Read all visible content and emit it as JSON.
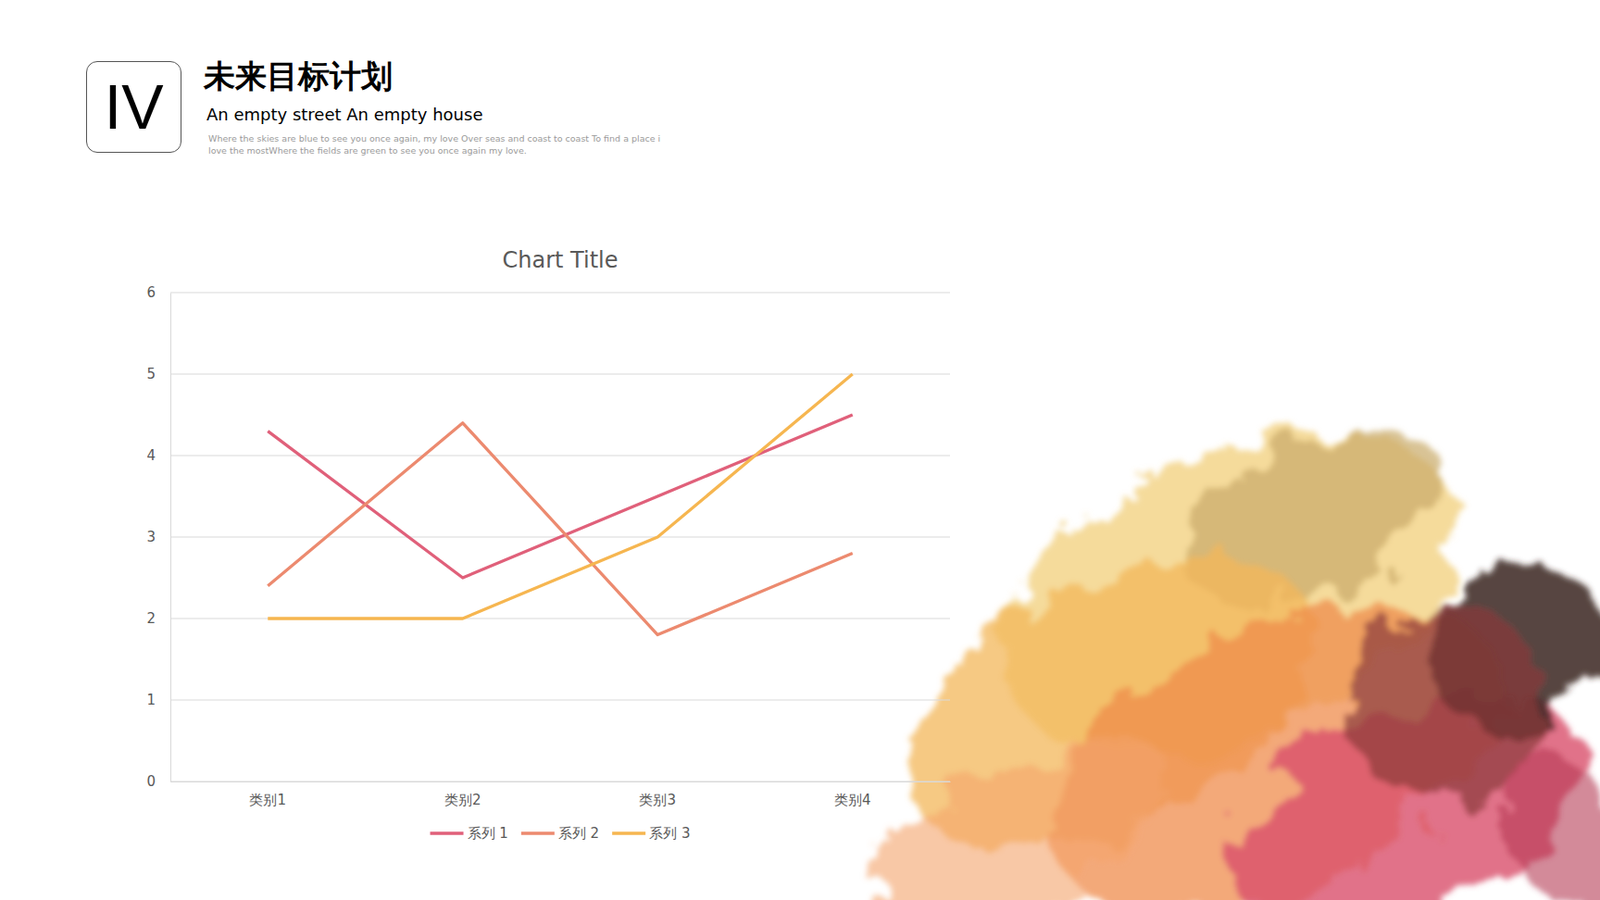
{
  "header": {
    "numeral": "IV",
    "title": "未来目标计划",
    "subtitle": "An empty street An empty house",
    "text": "Where the skies are blue to see you once again, my love Over seas and coast to coast To find a place i love the mostWhere the fields are green to see you once again my love."
  },
  "chart_data": {
    "type": "line",
    "title": "Chart Title",
    "categories": [
      "类别1",
      "类别2",
      "类别3",
      "类别4"
    ],
    "series": [
      {
        "name": "系列 1",
        "color": "#e0607a",
        "values": [
          4.3,
          2.5,
          3.5,
          4.5
        ]
      },
      {
        "name": "系列 2",
        "color": "#ec8a6f",
        "values": [
          2.4,
          4.4,
          1.8,
          2.8
        ]
      },
      {
        "name": "系列 3",
        "color": "#f6b650",
        "values": [
          2,
          2,
          3,
          5
        ]
      }
    ],
    "ylim": [
      0,
      6
    ],
    "yticks": [
      0,
      1,
      2,
      3,
      4,
      5,
      6
    ],
    "grid": true,
    "legend": "bottom"
  }
}
